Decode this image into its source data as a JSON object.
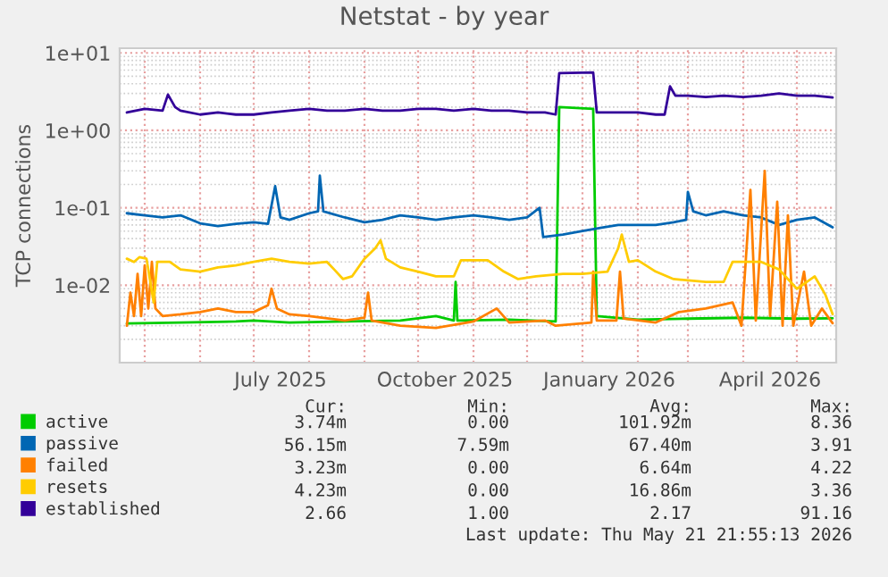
{
  "chart_data": {
    "type": "line",
    "title": "Netstat - by year",
    "ylabel": "TCP connections",
    "log": "y",
    "grid": true,
    "legend": "bottom",
    "marker": "none",
    "line_style": "solid",
    "xlim": [
      "2025-04-17",
      "2026-05-23"
    ],
    "ylim": [
      0.001,
      11.5
    ],
    "xticks": [
      {
        "value": "2025-05-01",
        "label": null
      },
      {
        "value": "2025-06-01",
        "label": null
      },
      {
        "value": "2025-07-01",
        "label": null
      },
      {
        "value": "2025-07-16",
        "label": "July 2025"
      },
      {
        "value": "2025-08-01",
        "label": null
      },
      {
        "value": "2025-09-01",
        "label": null
      },
      {
        "value": "2025-10-01",
        "label": null
      },
      {
        "value": "2025-10-16",
        "label": "October 2025"
      },
      {
        "value": "2025-11-01",
        "label": null
      },
      {
        "value": "2025-12-01",
        "label": null
      },
      {
        "value": "2026-01-01",
        "label": null
      },
      {
        "value": "2026-01-16",
        "label": "January 2026"
      },
      {
        "value": "2026-02-01",
        "label": null
      },
      {
        "value": "2026-03-01",
        "label": null
      },
      {
        "value": "2026-04-01",
        "label": null
      },
      {
        "value": "2026-04-16",
        "label": "April 2026"
      },
      {
        "value": "2026-05-01",
        "label": null
      }
    ],
    "yticks": [
      {
        "value": 0.01,
        "label": "1e-02"
      },
      {
        "value": 0.1,
        "label": "1e-01"
      },
      {
        "value": 1,
        "label": "1e+00"
      },
      {
        "value": 10,
        "label": "1e+01"
      }
    ],
    "series": [
      {
        "name": "active",
        "color": "#00cc00",
        "x": [
          "2025-04-21",
          "2025-05-21",
          "2025-06-21",
          "2025-07-01",
          "2025-07-21",
          "2025-08-21",
          "2025-09-21",
          "2025-10-11",
          "2025-10-21",
          "2025-10-22",
          "2025-10-23",
          "2025-11-21",
          "2025-12-17",
          "2025-12-19",
          "2026-01-07",
          "2026-01-09",
          "2026-02-01",
          "2026-03-01",
          "2026-04-01",
          "2026-05-01",
          "2026-05-21"
        ],
        "values": [
          0.0032,
          0.0033,
          0.0034,
          0.0035,
          0.0033,
          0.0034,
          0.0035,
          0.004,
          0.0035,
          0.011,
          0.0035,
          0.0036,
          0.0034,
          2.0,
          1.9,
          0.004,
          0.0036,
          0.0037,
          0.0038,
          0.0037,
          0.00374
        ]
      },
      {
        "name": "passive",
        "color": "#0066b3",
        "x": [
          "2025-04-21",
          "2025-05-01",
          "2025-05-11",
          "2025-05-21",
          "2025-06-01",
          "2025-06-11",
          "2025-06-21",
          "2025-07-01",
          "2025-07-09",
          "2025-07-13",
          "2025-07-16",
          "2025-07-21",
          "2025-08-01",
          "2025-08-06",
          "2025-08-07",
          "2025-08-09",
          "2025-08-21",
          "2025-09-01",
          "2025-09-11",
          "2025-09-21",
          "2025-10-01",
          "2025-10-11",
          "2025-10-21",
          "2025-11-01",
          "2025-11-11",
          "2025-11-21",
          "2025-12-01",
          "2025-12-08",
          "2025-12-10",
          "2025-12-21",
          "2026-01-01",
          "2026-01-11",
          "2026-01-21",
          "2026-02-01",
          "2026-02-11",
          "2026-02-21",
          "2026-02-28",
          "2026-03-01",
          "2026-03-04",
          "2026-03-11",
          "2026-03-21",
          "2026-04-01",
          "2026-04-11",
          "2026-04-21",
          "2026-05-01",
          "2026-05-11",
          "2026-05-21"
        ],
        "values": [
          0.085,
          0.08,
          0.075,
          0.08,
          0.063,
          0.058,
          0.062,
          0.065,
          0.062,
          0.19,
          0.075,
          0.07,
          0.085,
          0.09,
          0.26,
          0.09,
          0.075,
          0.065,
          0.07,
          0.08,
          0.075,
          0.07,
          0.075,
          0.08,
          0.075,
          0.07,
          0.075,
          0.1,
          0.042,
          0.045,
          0.05,
          0.055,
          0.06,
          0.06,
          0.06,
          0.065,
          0.07,
          0.16,
          0.09,
          0.08,
          0.09,
          0.08,
          0.075,
          0.06,
          0.07,
          0.075,
          0.056
        ]
      },
      {
        "name": "failed",
        "color": "#ff8000",
        "x": [
          "2025-04-21",
          "2025-04-23",
          "2025-04-25",
          "2025-04-27",
          "2025-04-29",
          "2025-05-01",
          "2025-05-03",
          "2025-05-05",
          "2025-05-07",
          "2025-05-11",
          "2025-05-21",
          "2025-06-01",
          "2025-06-11",
          "2025-06-21",
          "2025-07-01",
          "2025-07-09",
          "2025-07-11",
          "2025-07-14",
          "2025-07-21",
          "2025-08-01",
          "2025-08-21",
          "2025-09-01",
          "2025-09-03",
          "2025-09-05",
          "2025-09-21",
          "2025-10-11",
          "2025-11-01",
          "2025-11-14",
          "2025-11-21",
          "2025-12-11",
          "2025-12-17",
          "2026-01-06",
          "2026-01-07",
          "2026-01-09",
          "2026-01-20",
          "2026-01-22",
          "2026-01-24",
          "2026-02-11",
          "2026-02-24",
          "2026-03-11",
          "2026-03-26",
          "2026-03-31",
          "2026-04-05",
          "2026-04-08",
          "2026-04-13",
          "2026-04-16",
          "2026-04-20",
          "2026-04-23",
          "2026-04-26",
          "2026-04-29",
          "2026-05-05",
          "2026-05-09",
          "2026-05-15",
          "2026-05-21"
        ],
        "values": [
          0.003,
          0.008,
          0.004,
          0.014,
          0.004,
          0.018,
          0.005,
          0.02,
          0.005,
          0.004,
          0.0042,
          0.0045,
          0.005,
          0.0045,
          0.0045,
          0.0055,
          0.009,
          0.005,
          0.0042,
          0.004,
          0.0035,
          0.0038,
          0.008,
          0.0035,
          0.003,
          0.0028,
          0.0034,
          0.005,
          0.0033,
          0.0035,
          0.003,
          0.0033,
          0.015,
          0.0035,
          0.0035,
          0.015,
          0.0037,
          0.0033,
          0.0045,
          0.005,
          0.006,
          0.003,
          0.17,
          0.0035,
          0.3,
          0.004,
          0.12,
          0.003,
          0.08,
          0.003,
          0.015,
          0.003,
          0.005,
          0.00323
        ]
      },
      {
        "name": "resets",
        "color": "#ffcc00",
        "x": [
          "2025-04-21",
          "2025-04-25",
          "2025-04-28",
          "2025-05-02",
          "2025-05-06",
          "2025-05-08",
          "2025-05-15",
          "2025-05-21",
          "2025-06-01",
          "2025-06-11",
          "2025-06-21",
          "2025-07-01",
          "2025-07-11",
          "2025-07-21",
          "2025-08-01",
          "2025-08-11",
          "2025-08-15",
          "2025-08-20",
          "2025-08-25",
          "2025-09-01",
          "2025-09-07",
          "2025-09-10",
          "2025-09-13",
          "2025-09-21",
          "2025-10-01",
          "2025-10-11",
          "2025-10-21",
          "2025-10-25",
          "2025-11-09",
          "2025-11-18",
          "2025-11-26",
          "2025-12-06",
          "2025-12-21",
          "2026-01-01",
          "2026-01-15",
          "2026-01-21",
          "2026-01-23",
          "2026-01-27",
          "2026-02-01",
          "2026-02-11",
          "2026-02-21",
          "2026-03-11",
          "2026-03-21",
          "2026-03-26",
          "2026-04-11",
          "2026-04-21",
          "2026-05-01",
          "2026-05-11",
          "2026-05-17",
          "2026-05-21"
        ],
        "values": [
          0.022,
          0.02,
          0.023,
          0.022,
          0.006,
          0.02,
          0.02,
          0.016,
          0.015,
          0.017,
          0.018,
          0.02,
          0.022,
          0.02,
          0.019,
          0.02,
          0.016,
          0.012,
          0.013,
          0.022,
          0.03,
          0.038,
          0.022,
          0.017,
          0.015,
          0.013,
          0.013,
          0.021,
          0.021,
          0.015,
          0.012,
          0.013,
          0.014,
          0.014,
          0.015,
          0.03,
          0.045,
          0.02,
          0.021,
          0.015,
          0.012,
          0.011,
          0.011,
          0.02,
          0.02,
          0.016,
          0.009,
          0.013,
          0.0075,
          0.00423
        ]
      },
      {
        "name": "established",
        "color": "#330099",
        "x": [
          "2025-04-21",
          "2025-05-01",
          "2025-05-11",
          "2025-05-14",
          "2025-05-18",
          "2025-05-21",
          "2025-06-01",
          "2025-06-11",
          "2025-06-21",
          "2025-07-01",
          "2025-07-11",
          "2025-07-21",
          "2025-08-01",
          "2025-08-11",
          "2025-08-21",
          "2025-09-01",
          "2025-09-11",
          "2025-09-21",
          "2025-10-01",
          "2025-10-11",
          "2025-10-21",
          "2025-11-01",
          "2025-11-11",
          "2025-11-21",
          "2025-12-01",
          "2025-12-11",
          "2025-12-17",
          "2025-12-19",
          "2026-01-07",
          "2026-01-09",
          "2026-01-21",
          "2026-02-01",
          "2026-02-11",
          "2026-02-16",
          "2026-02-19",
          "2026-02-22",
          "2026-03-01",
          "2026-03-11",
          "2026-03-21",
          "2026-04-01",
          "2026-04-11",
          "2026-04-21",
          "2026-05-01",
          "2026-05-11",
          "2026-05-21"
        ],
        "values": [
          1.7,
          1.9,
          1.8,
          2.9,
          2.0,
          1.8,
          1.6,
          1.7,
          1.6,
          1.6,
          1.7,
          1.8,
          1.9,
          1.8,
          1.8,
          1.9,
          1.8,
          1.8,
          1.9,
          1.9,
          1.8,
          1.9,
          1.8,
          1.8,
          1.7,
          1.7,
          1.6,
          5.5,
          5.6,
          1.7,
          1.7,
          1.7,
          1.6,
          1.6,
          3.7,
          2.8,
          2.8,
          2.7,
          2.8,
          2.7,
          2.8,
          3.0,
          2.8,
          2.8,
          2.66
        ]
      }
    ],
    "annotations": [
      "Cur:",
      "Min:",
      "Avg:",
      "Max:",
      "3.74m",
      "0.00",
      "101.92m",
      "8.36",
      "56.15m",
      "7.59m",
      "67.40m",
      "3.91",
      "3.23m",
      "0.00",
      "6.64m",
      "4.22",
      "4.23m",
      "0.00",
      "16.86m",
      "3.36",
      "2.66",
      "1.00",
      "2.17",
      "91.16",
      "Last update: Thu May 21 21:55:13 2026"
    ]
  }
}
